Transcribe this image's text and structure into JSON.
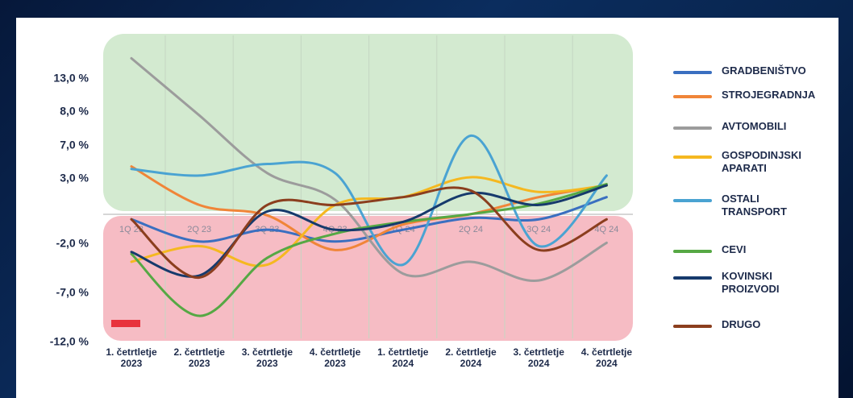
{
  "chart_data": {
    "type": "line",
    "categories": [
      "1. četrtletje\n2023",
      "2. četrtletje\n2023",
      "3. četrtletje\n2023",
      "4. četrtletje\n2023",
      "1. četrtletje\n2024",
      "2. četrtletje\n2024",
      "3. četrtletje\n2024",
      "4. četrtletje\n2024"
    ],
    "quarter_labels": [
      "1Q 23",
      "2Q 23",
      "3Q 23",
      "4Q 23",
      "1Q 24",
      "2Q 24",
      "3Q 24",
      "4Q 24"
    ],
    "ylim": [
      -12,
      20
    ],
    "yticks": [
      {
        "value": 13,
        "label": "13,0 %"
      },
      {
        "value": 8,
        "label": "8,0 %"
      },
      {
        "value": 7,
        "label": "7,0 %"
      },
      {
        "value": 3,
        "label": "3,0 %"
      },
      {
        "value": -2,
        "label": "-2,0 %"
      },
      {
        "value": -7,
        "label": "-7,0 %"
      },
      {
        "value": -12,
        "label": "-12,0 %"
      }
    ],
    "series": [
      {
        "name": "GRADBENIŠTVO",
        "color": "#3a6fc0",
        "values": [
          -0.1,
          -1.8,
          -0.9,
          -1.8,
          -0.9,
          0,
          -0.1,
          1.6
        ]
      },
      {
        "name": "STROJEGRADNJA",
        "color": "#f08538",
        "values": [
          4.5,
          1.0,
          0.2,
          -2.6,
          -0.5,
          0.3,
          1.6,
          2.5
        ]
      },
      {
        "name": "AVTOMOBILI",
        "color": "#9c9c9c",
        "values": [
          16.2,
          7.9,
          3.7,
          1.4,
          -5.0,
          -3.8,
          -5.7,
          -1.9
        ]
      },
      {
        "name": "GOSPODINJSKI APARATI",
        "color": "#f5b820",
        "values": [
          -3.8,
          -2.2,
          -4.1,
          1.0,
          1.6,
          3.2,
          2.0,
          2.5
        ]
      },
      {
        "name": "OSTALI TRANSPORT",
        "color": "#4aa3d2",
        "values": [
          4.2,
          3.4,
          4.8,
          3.7,
          -4.1,
          7.3,
          -2.2,
          3.4
        ]
      },
      {
        "name": "CEVI",
        "color": "#56a844",
        "values": [
          -3.0,
          -9.3,
          -3.4,
          -1.2,
          -0.3,
          0.3,
          1.1,
          2.6
        ]
      },
      {
        "name": "KOVINSKI PROIZVODI",
        "color": "#163a6c",
        "values": [
          -2.8,
          -5.2,
          0.5,
          -0.9,
          -0.3,
          1.9,
          1.0,
          2.5
        ]
      },
      {
        "name": "DRUGO",
        "color": "#8b3e1e",
        "values": [
          -0.1,
          -5.4,
          1.0,
          1.0,
          1.6,
          2.1,
          -2.6,
          -0.1
        ]
      }
    ]
  }
}
